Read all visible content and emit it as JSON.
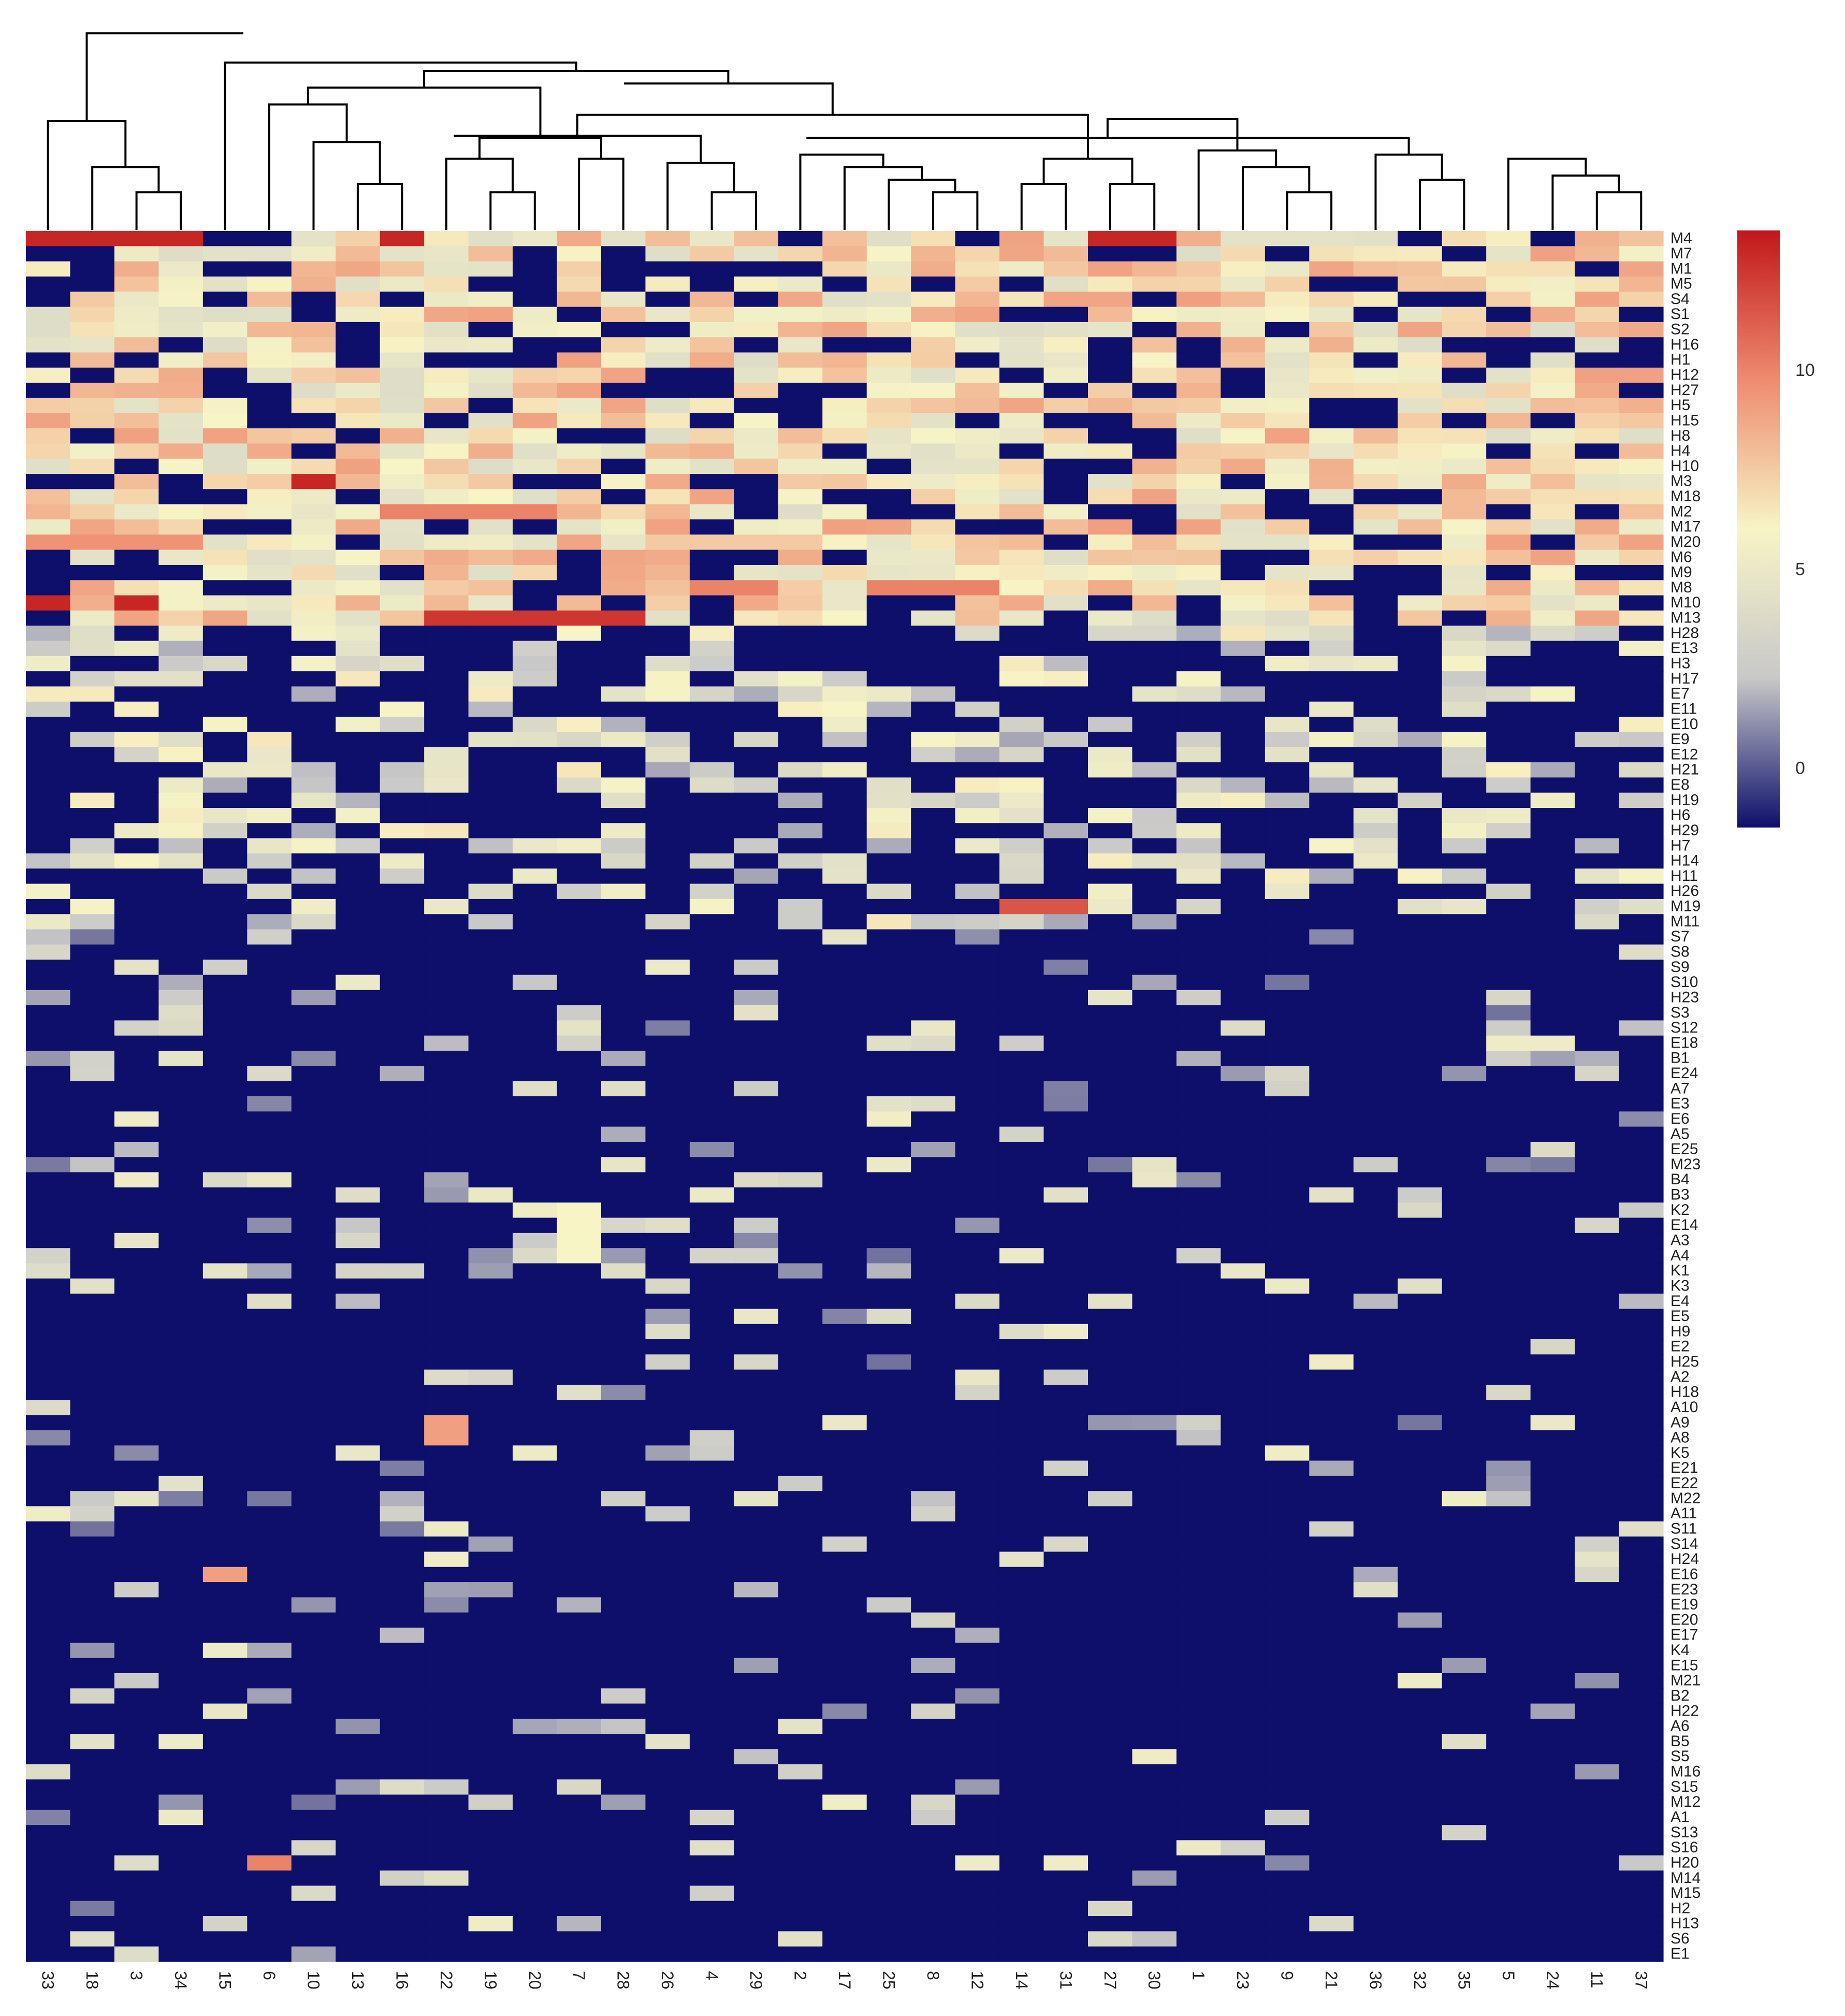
{
  "chart_data": {
    "type": "heatmap",
    "title": "",
    "rows": [
      "M4",
      "M7",
      "M1",
      "M5",
      "S4",
      "S1",
      "S2",
      "H16",
      "H1",
      "H12",
      "H27",
      "H5",
      "H15",
      "H8",
      "H4",
      "H10",
      "M3",
      "M18",
      "M2",
      "M17",
      "M20",
      "M6",
      "M9",
      "M8",
      "M10",
      "M13",
      "H28",
      "E13",
      "H3",
      "H17",
      "E7",
      "E11",
      "E10",
      "E9",
      "E12",
      "H21",
      "E8",
      "H19",
      "H6",
      "H29",
      "H7",
      "H14",
      "H11",
      "H26",
      "M19",
      "M11",
      "S7",
      "S8",
      "S9",
      "S10",
      "H23",
      "S3",
      "S12",
      "E18",
      "B1",
      "E24",
      "A7",
      "E3",
      "E6",
      "A5",
      "E25",
      "M23",
      "B4",
      "B3",
      "K2",
      "E14",
      "A3",
      "A4",
      "K1",
      "K3",
      "E4",
      "E5",
      "H9",
      "E2",
      "H25",
      "A2",
      "H18",
      "A10",
      "A9",
      "A8",
      "K5",
      "E21",
      "E22",
      "M22",
      "A11",
      "S11",
      "S14",
      "H24",
      "E16",
      "E23",
      "E19",
      "E20",
      "E17",
      "K4",
      "E15",
      "M21",
      "B2",
      "H22",
      "A6",
      "B5",
      "S5",
      "M16",
      "S15",
      "M12",
      "A1",
      "S13",
      "S16",
      "H20",
      "M14",
      "M15",
      "H2",
      "H13",
      "S6",
      "E1"
    ],
    "columns": [
      "33",
      "18",
      "3",
      "34",
      "15",
      "6",
      "10",
      "13",
      "16",
      "22",
      "19",
      "20",
      "7",
      "28",
      "26",
      "4",
      "29",
      "2",
      "17",
      "25",
      "8",
      "12",
      "14",
      "31",
      "27",
      "30",
      "1",
      "23",
      "9",
      "21",
      "36",
      "32",
      "35",
      "5",
      "24",
      "11",
      "37"
    ],
    "color_scale": {
      "min": -1.5,
      "max": 13.5,
      "ticks": [
        0,
        5,
        10
      ],
      "colors": [
        "#0d0f6b",
        "#c8c8c8",
        "#f7f4c6",
        "#ee8b6f",
        "#c2171a"
      ]
    },
    "row_labels_visible": "all",
    "dendrogram": "columns (top)",
    "values": "dense matrix (114 rows x 37 columns), low values dominant; high values concentrated in M4, M1, M5, M3, M18, M2, M20, M6, M9, M8, M10, M13, M19 rows"
  }
}
